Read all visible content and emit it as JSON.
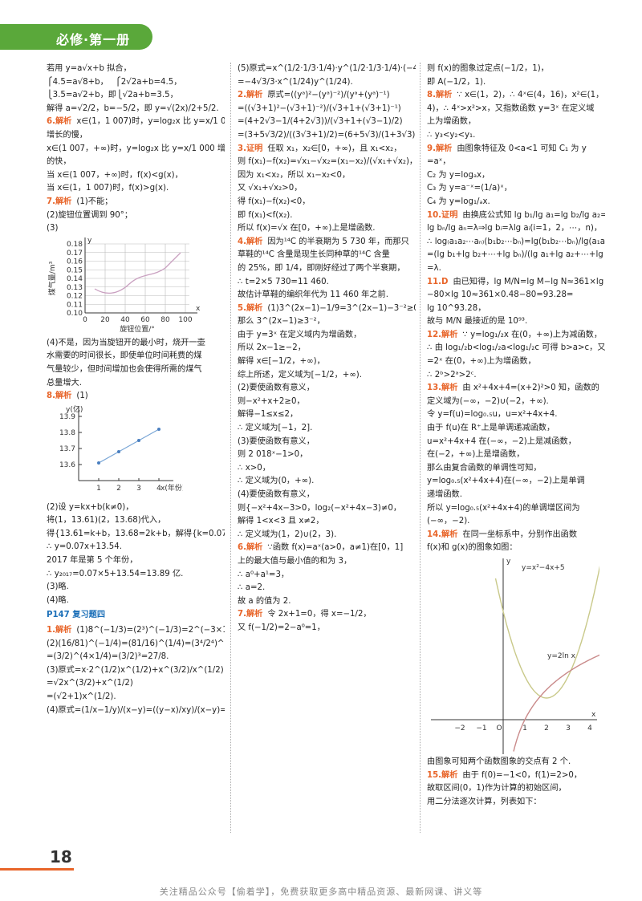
{
  "header": {
    "title": "必修·第一册"
  },
  "columns": [
    [
      {
        "lines": [
          "若用 y=a√x+b 拟合，",
          "⎧4.5=a√8+b，　 ⎧2√2a+b=4.5，",
          "⎩3.5=a√2+b，即⎩√2a+b=3.5，",
          "解得 a=√2/2，b=−5/2，即 y=√(2x)/2+5/2.",
          {
            "label": "6.解析",
            "text": "x∈(1，1 007)时，y=log₂x 比 y=x/1 000"
          },
          "增长的慢，",
          "x∈(1 007，+∞)时，y=log₂x 比 y=x/1 000 增长",
          "的快，",
          "当 x∈(1 007，+∞)时，f(x)<g(x)，",
          "当 x∈(1，1 007)时，f(x)>g(x).",
          {
            "label": "7.解析",
            "text": "(1)不能；"
          },
          "(2)旋钮位置调到 90°；",
          "(3)"
        ]
      },
      {
        "graph": {
          "y_axis": "y",
          "x_axis": "x",
          "y_label": "煤气量/m³",
          "x_label": "旋钮位置/°",
          "yticks": [
            "0.10",
            "0.11",
            "0.12",
            "0.13",
            "0.14",
            "0.15",
            "0.16",
            "0.17",
            "0.18"
          ],
          "xticks": [
            "0",
            "20",
            "40",
            "60",
            "80",
            "100"
          ]
        }
      },
      {
        "lines": [
          "(4)不是，因为当旋钮开的最小时，烧开一壶",
          "水需要的时间很长，即使单位时间耗费的煤",
          "气量较少，但时间增加也会使得所需的煤气",
          "总量增大.",
          {
            "label": "8.解析",
            "text": "(1)"
          }
        ]
      },
      {
        "graph": {
          "y_label": "y(亿)",
          "x_label": "x(年份)",
          "yticks": [
            "13.6",
            "13.7",
            "13.8",
            "13.9"
          ],
          "xticks": [
            "1",
            "2",
            "3",
            "4"
          ]
        }
      },
      {
        "lines": [
          "(2)设 y=kx+b(k≠0)，",
          "将(1，13.61)(2，13.68)代入，",
          "得{13.61=k+b，13.68=2k+b，解得{k=0.07，b=13.54，",
          "∴ y=0.07x+13.54.",
          "2017 年是第 5 个年份，",
          "∴ y₂₀₁₇=0.07×5+13.54=13.89 亿.",
          "(3)略.",
          "(4)略."
        ]
      },
      {
        "section": "P147 复习题四"
      },
      {
        "lines": [
          {
            "label": "1.解析",
            "text": "(1)8^(−1/3)=(2³)^(−1/3)=2^(−3×1/3)=2⁻²=1/4."
          },
          "(2)(16/81)^(−1/4)=(81/16)^(1/4)=(3⁴/2⁴)^(1/4)",
          "=(3/2)^(4×1/4)=(3/2)³=27/8.",
          "(3)原式=x·2^(1/2)x^(1/2)+x^(3/2)/x^(1/2)",
          "=√2x^(3/2)+x^(1/2)",
          "=(√2+1)x^(1/2).",
          "(4)原式=(1/x−1/y)/(x−y)=((y−x)/xy)/(x−y)=−1/xy."
        ]
      }
    ],
    [
      {
        "lines": [
          "(5)原式=x^(1/2·1/3·1/4)·y^(1/2·1/3·1/4)·(−4/√3)",
          "=−4√3/3·x^(1/24)y^(1/24).",
          {
            "label": "2.解析",
            "text": "原式=((yᵃ)²−(yᵃ)⁻²)/(yᵃ+(yᵃ)⁻¹)"
          },
          "=((√3+1)²−(√3+1)⁻²)/(√3+1+(√3+1)⁻¹)",
          "=(4+2√3−1/(4+2√3))/(√3+1+(√3−1)/2)",
          "=(3+5√3/2)/((3√3+1)/2)=(6+5√3)/(1+3√3)=(3+√3)/2.",
          {
            "label": "3.证明",
            "text": "任取 x₁，x₂∈[0，+∞)，且 x₁<x₂，"
          },
          "则 f(x₁)−f(x₂)=√x₁−√x₂=(x₁−x₂)/(√x₁+√x₂)，",
          "因为 x₁<x₂，所以 x₁−x₂<0，",
          "又 √x₁+√x₂>0，",
          "得 f(x₁)−f(x₂)<0，",
          "即 f(x₁)<f(x₂).",
          "所以 f(x)=√x 在[0，+∞)上是增函数.",
          {
            "label": "4.解析",
            "text": "因为¹⁴C 的半衰期为 5 730 年，而那只"
          },
          "草鞋的¹⁴C 含量是现生长同种草的¹⁴C 含量",
          "的 25%，即 1/4，即刚好经过了两个半衰期，",
          "∴ t=2×5 730=11 460.",
          "故估计草鞋的编织年代为 11 460 年之前.",
          {
            "label": "5.解析",
            "text": "(1)3^(2x−1)−1/9=3^(2x−1)−3⁻²≥0，"
          },
          "那么 3^(2x−1)≥3⁻²，",
          "由于 y=3ˣ 在定义域内为增函数，",
          "所以 2x−1≥−2，",
          "解得 x∈[−1/2，+∞)，",
          "综上所述，定义域为[−1/2，+∞).",
          "(2)要使函数有意义，",
          "则−x²+x+2≥0，",
          "解得−1≤x≤2，",
          "∴ 定义域为[−1，2].",
          "(3)要使函数有意义，",
          "则 2 018ˣ−1>0，",
          "∴ x>0，",
          "∴ 定义域为(0，+∞).",
          "(4)要使函数有意义，",
          "则{−x²+4x−3>0，log₂(−x²+4x−3)≠0，",
          "解得 1<x<3 且 x≠2，",
          "∴ 定义域为(1，2)∪(2，3).",
          {
            "label": "6.解析",
            "text": "∵函数 f(x)=aˣ(a>0，a≠1)在[0，1]"
          },
          "上的最大值与最小值的和为 3，",
          "∴ a⁰+a¹=3，",
          "∴ a=2.",
          "故 a 的值为 2.",
          {
            "label": "7.解析",
            "text": "令 2x+1=0，得 x=−1/2，"
          },
          "又 f(−1/2)=2−a⁰=1，"
        ]
      }
    ],
    [
      {
        "lines": [
          "则 f(x)的图象过定点(−1/2，1)，",
          "即 A(−1/2，1).",
          {
            "label": "8.解析",
            "text": "∵ x∈(1，2)，∴ 4ˣ∈(4，16)，x²∈(1，"
          },
          "4)，∴ 4ˣ>x²>x，又指数函数 y=3ˣ 在定义域",
          "上为增函数，",
          "∴ y₃<y₂<y₁.",
          {
            "label": "9.解析",
            "text": "由图象特征及 0<a<1 可知 C₁ 为 y"
          },
          "=aˣ，",
          "C₂ 为 y=logₐx，",
          "C₃ 为 y=a⁻ˣ=(1/a)ˣ，",
          "C₄ 为 y=log₁/ₐx.",
          {
            "label": "10.证明",
            "text": "由换底公式知 lg b₁/lg a₁=lg b₂/lg a₂=⋯="
          },
          "lg bₙ/lg aₙ=λ⇒lg bᵢ=λlg aᵢ(i=1，2，⋯，n)，",
          "∴ log₍a₁a₂⋯aₙ₎(b₁b₂⋯bₙ)=lg(b₁b₂⋯bₙ)/lg(a₁a₂⋯aₙ)",
          "=(lg b₁+lg b₂+⋯+lg bₙ)/(lg a₁+lg a₂+⋯+lg aₙ)",
          "=λ.",
          {
            "label": "11.D",
            "text": "由已知得，lg M/N=lg M−lg N≈361×lg 3"
          },
          "−80×lg 10≈361×0.48−80=93.28=",
          "lg 10^93.28，",
          "故与 M/N 最接近的是 10⁹³.",
          {
            "label": "12.解析",
            "text": "∵ y=log₁/₂x 在(0，+∞)上为减函数，"
          },
          "∴ 由 log₁/₂b<log₁/₂a<log₁/₂c 可得 b>a>c，又 y",
          "=2ˣ 在(0，+∞)上为增函数，",
          "∴ 2ᵇ>2ᵃ>2ᶜ.",
          {
            "label": "13.解析",
            "text": "由 x²+4x+4=(x+2)²>0 知，函数的"
          },
          "定义域为(−∞，−2)∪(−2，+∞).",
          "令 y=f(u)=log₀.₅u，u=x²+4x+4.",
          "由于 f(u)在 R⁺上是单调递减函数，",
          "u=x²+4x+4 在(−∞，−2)上是减函数，",
          "在(−2，+∞)上是增函数，",
          "那么由复合函数的单调性可知，",
          "y=log₀.₅(x²+4x+4)在(−∞，−2)上是单调",
          "递增函数.",
          "所以 y=log₀.₅(x²+4x+4)的单调增区间为",
          "(−∞，−2).",
          {
            "label": "14.解析",
            "text": "在同一坐标系中，分别作出函数"
          },
          "f(x)和 g(x)的图象如图："
        ]
      },
      {
        "graph": {
          "y_axis": "y",
          "x_axis": "x",
          "curve1": "y=x²−4x+5",
          "curve2": "y=2ln x",
          "xticks": [
            "−2",
            "−1",
            "O",
            "1",
            "2",
            "3",
            "4"
          ]
        }
      },
      {
        "lines": [
          "由图象可知两个函数图象的交点有 2 个.",
          {
            "label": "15.解析",
            "text": "由于 f(0)=−1<0，f(1)=2>0，"
          },
          "故取区间(0，1)作为计算的初始区间，",
          "用二分法逐次计算，列表如下："
        ]
      }
    ]
  ],
  "footer": {
    "page_number": "18",
    "note": "关注精品公众号【偷着学】，免费获取更多高中精品资源、最新网课、讲义等"
  }
}
